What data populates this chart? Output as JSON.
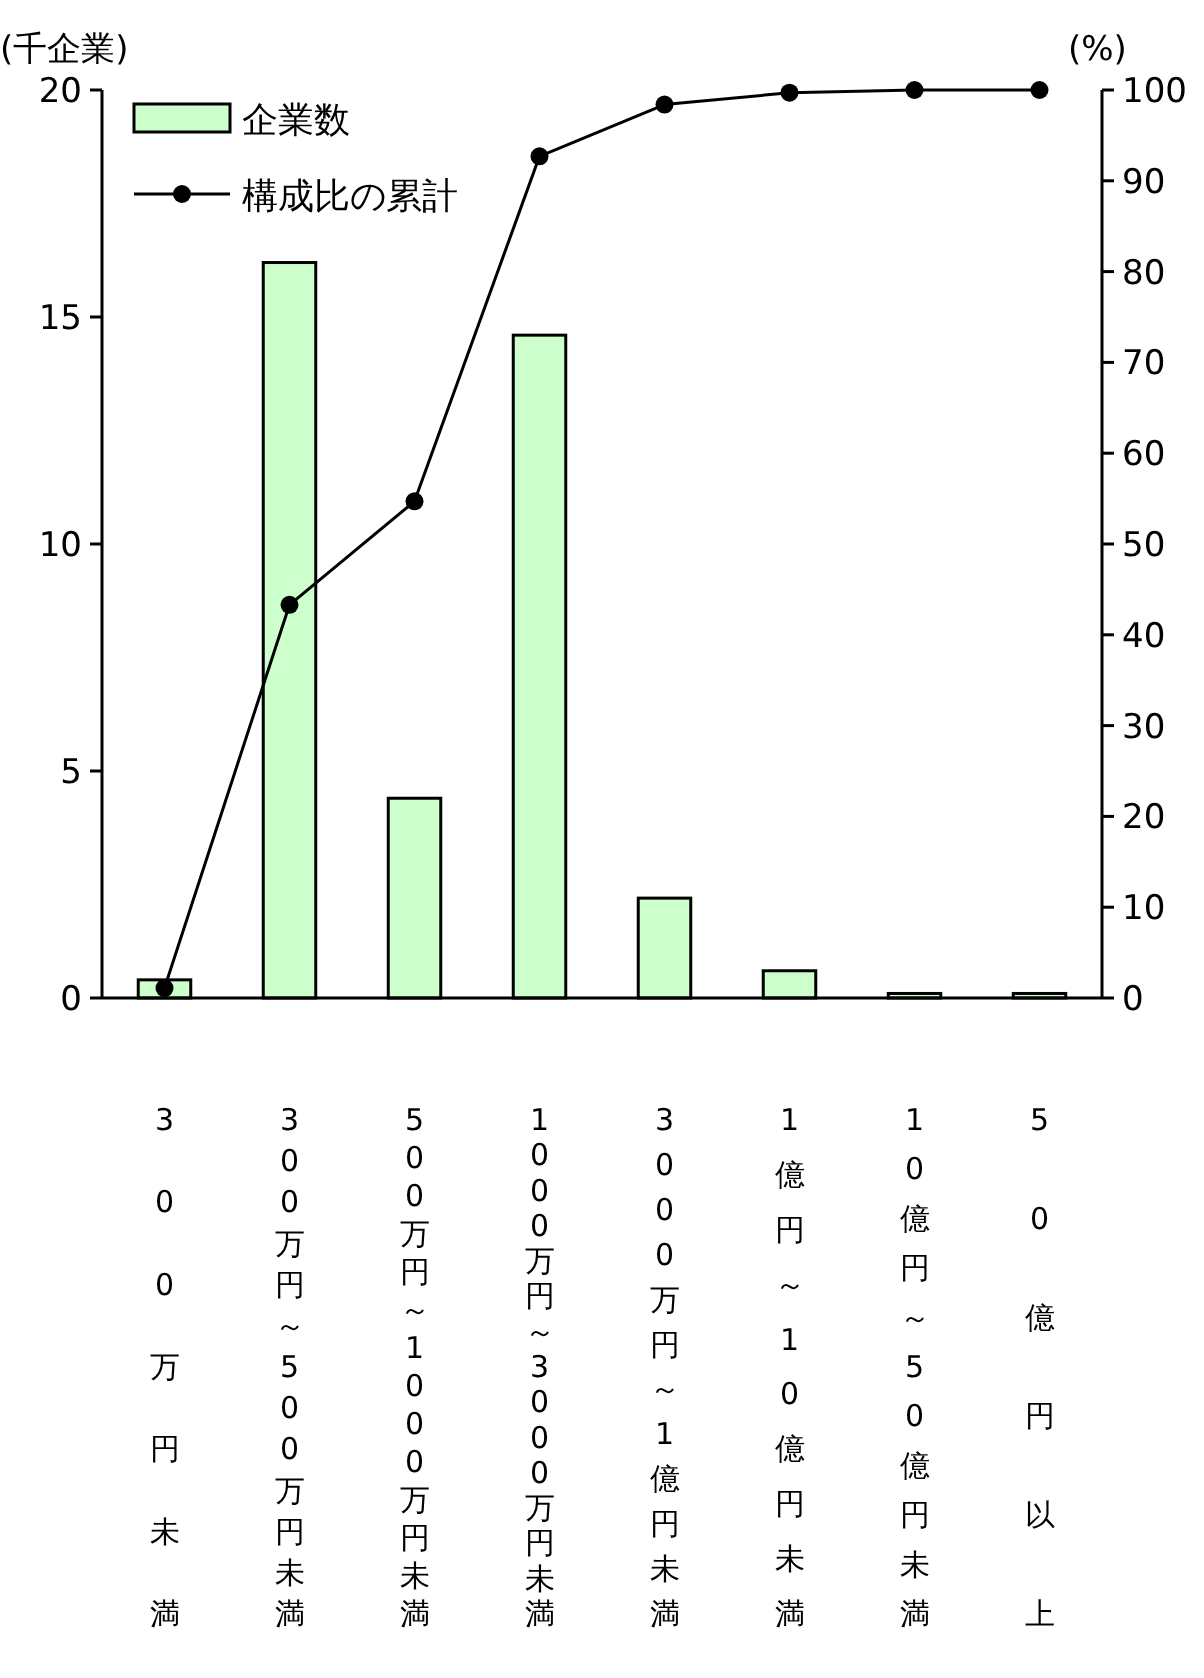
{
  "chart_data": {
    "type": "bar",
    "ylabel": "(千企業)",
    "y2label": "(%)",
    "categories": [
      "300万円未満",
      "300万円～500万円未満",
      "500万円～1000万円未満",
      "1000万円～3000万円未満",
      "3000万円～1億円未満",
      "1億円～10億円未満",
      "10億円～50億円未満",
      "50億円以上"
    ],
    "series": [
      {
        "name": "企業数",
        "color": "#ccffcc",
        "values": [
          0.4,
          16.2,
          4.4,
          14.6,
          2.2,
          0.6,
          0.1,
          0.1
        ]
      },
      {
        "name": "構成比の累計",
        "type": "line",
        "axis": "y2",
        "color": "#000000",
        "values": [
          1.1,
          43.3,
          54.7,
          92.7,
          98.4,
          99.7,
          100,
          100
        ]
      }
    ],
    "marker": "circle",
    "legend": "top left",
    "ylim": [
      0,
      20
    ],
    "yticks": [
      0,
      5,
      10,
      15,
      20
    ],
    "y2lim": [
      0,
      100
    ],
    "y2ticks": [
      0,
      10,
      20,
      30,
      40,
      50,
      60,
      70,
      80,
      90,
      100
    ]
  }
}
